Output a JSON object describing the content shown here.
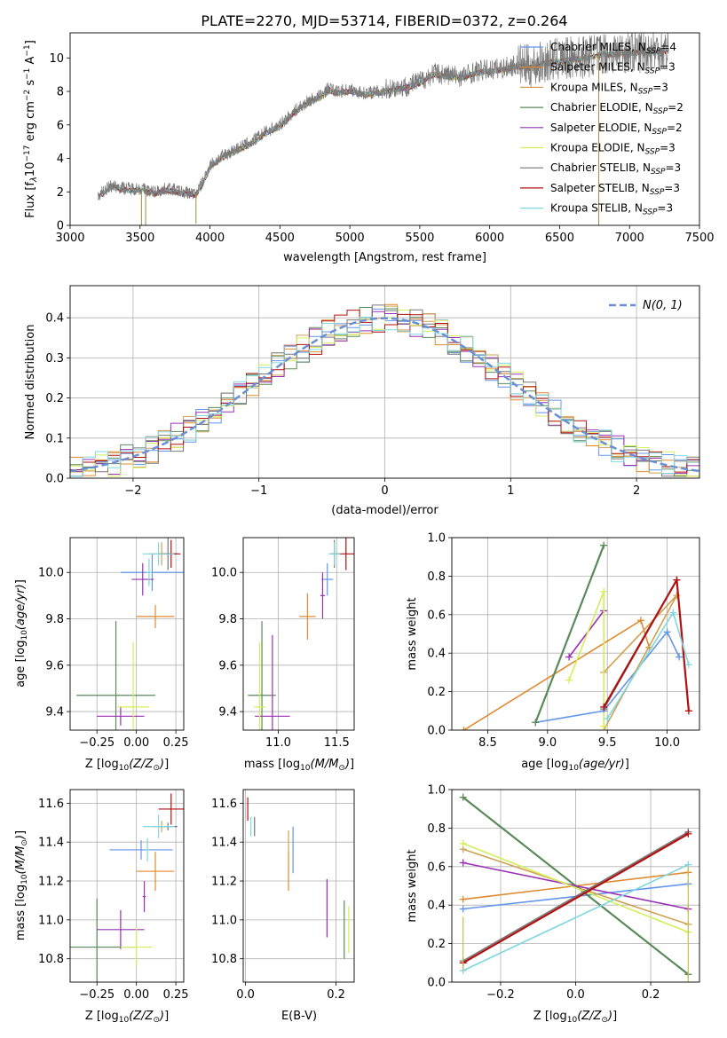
{
  "title": "PLATE=2270, MJD=53714, FIBERID=0372, z=0.264",
  "series_styles": [
    {
      "name": "Chabrier MILES, N_SSP=4",
      "color": "#6495ed"
    },
    {
      "name": "Salpeter MILES, N_SSP=3",
      "color": "#e08a2e"
    },
    {
      "name": "Kroupa MILES, N_SSP=3",
      "color": "#d0a050"
    },
    {
      "name": "Chabrier ELODIE, N_SSP=2",
      "color": "#5a8a5a"
    },
    {
      "name": "Salpeter ELODIE, N_SSP=2",
      "color": "#9b30b5"
    },
    {
      "name": "Kroupa ELODIE, N_SSP=3",
      "color": "#d4ee5a"
    },
    {
      "name": "Chabrier STELIB, N_SSP=3",
      "color": "#777777"
    },
    {
      "name": "Salpeter STELIB, N_SSP=3",
      "color": "#b01010"
    },
    {
      "name": "Kroupa STELIB, N_SSP=3",
      "color": "#7fd7e0"
    }
  ],
  "chart_data": [
    {
      "id": "spectrum",
      "type": "line",
      "xlabel": "wavelength [Angstrom, rest frame]",
      "ylabel": "Flux [f_λ10^-17 erg cm^-2 s^-1 A^-1]",
      "xlim": [
        3000,
        7500
      ],
      "ylim": [
        0,
        11.5
      ],
      "xticks": [
        3000,
        3500,
        4000,
        4500,
        5000,
        5500,
        6000,
        6500,
        7000,
        7500
      ],
      "yticks": [
        0,
        2,
        4,
        6,
        8,
        10
      ],
      "legend": {
        "position": "upper-right",
        "entries": [
          {
            "base": "Chabrier MILES, N",
            "sub": "SSP",
            "tail": "=4"
          },
          {
            "base": "Salpeter MILES, N",
            "sub": "SSP",
            "tail": "=3"
          },
          {
            "base": "Kroupa MILES, N",
            "sub": "SSP",
            "tail": "=3"
          },
          {
            "base": "Chabrier ELODIE, N",
            "sub": "SSP",
            "tail": "=2"
          },
          {
            "base": "Salpeter ELODIE, N",
            "sub": "SSP",
            "tail": "=2"
          },
          {
            "base": "Kroupa ELODIE, N",
            "sub": "SSP",
            "tail": "=3"
          },
          {
            "base": "Chabrier STELIB, N",
            "sub": "SSP",
            "tail": "=3"
          },
          {
            "base": "Salpeter STELIB, N",
            "sub": "SSP",
            "tail": "=3"
          },
          {
            "base": "Kroupa STELIB, N",
            "sub": "SSP",
            "tail": "=3"
          }
        ]
      },
      "continuum": [
        [
          3200,
          1.8
        ],
        [
          3300,
          2.4
        ],
        [
          3400,
          2.2
        ],
        [
          3500,
          2.2
        ],
        [
          3600,
          2.0
        ],
        [
          3700,
          2.2
        ],
        [
          3800,
          2.0
        ],
        [
          3900,
          1.9
        ],
        [
          3950,
          2.6
        ],
        [
          4000,
          3.6
        ],
        [
          4100,
          4.2
        ],
        [
          4200,
          4.6
        ],
        [
          4300,
          5.0
        ],
        [
          4400,
          5.6
        ],
        [
          4500,
          6.0
        ],
        [
          4600,
          6.8
        ],
        [
          4700,
          7.4
        ],
        [
          4800,
          7.8
        ],
        [
          4850,
          8.2
        ],
        [
          4900,
          8.0
        ],
        [
          5000,
          8.1
        ],
        [
          5100,
          7.9
        ],
        [
          5200,
          8.0
        ],
        [
          5300,
          8.2
        ],
        [
          5400,
          8.3
        ],
        [
          5500,
          8.6
        ],
        [
          5600,
          9.1
        ],
        [
          5700,
          9.0
        ],
        [
          5800,
          8.9
        ],
        [
          5900,
          9.2
        ],
        [
          6000,
          9.3
        ],
        [
          6100,
          9.4
        ],
        [
          6200,
          9.6
        ],
        [
          6300,
          9.5
        ],
        [
          6400,
          9.8
        ],
        [
          6500,
          9.9
        ],
        [
          6600,
          10.0
        ],
        [
          6700,
          10.1
        ],
        [
          6800,
          10.3
        ],
        [
          6900,
          10.3
        ],
        [
          7000,
          10.4
        ],
        [
          7100,
          10.4
        ],
        [
          7200,
          10.5
        ],
        [
          7280,
          10.5
        ]
      ],
      "model_ranges": [
        [
          3550,
          7100
        ],
        [
          3550,
          7200
        ],
        [
          3550,
          6650
        ],
        [
          3200,
          7260
        ],
        [
          3550,
          6650
        ],
        [
          3900,
          7100
        ],
        [
          3200,
          7280
        ],
        [
          3200,
          7280
        ],
        [
          3200,
          7280
        ]
      ],
      "data_range": [
        3200,
        7280
      ],
      "glitches": [
        [
          3510,
          0
        ],
        [
          3540,
          0
        ],
        [
          3900,
          0.1
        ],
        [
          6780,
          0
        ]
      ]
    },
    {
      "id": "residuals",
      "type": "line",
      "xlabel": "(data-model)/error",
      "ylabel": "Normed distribution",
      "xlim": [
        -2.5,
        2.5
      ],
      "ylim": [
        0,
        0.48
      ],
      "xticks": [
        -2,
        -1,
        0,
        1,
        2
      ],
      "yticks": [
        0.0,
        0.1,
        0.2,
        0.3,
        0.4
      ],
      "legend": {
        "position": "upper-right",
        "label": "N(0, 1)"
      },
      "normal": {
        "mean": 0,
        "sigma": 1
      }
    },
    {
      "id": "age_vs_Z",
      "type": "scatter",
      "xlabel": "Z [log10(Z/Z⊙)]",
      "ylabel": "age [log10(age/yr)]",
      "xlim": [
        -0.42,
        0.3
      ],
      "ylim": [
        9.32,
        10.15
      ],
      "xticks": [
        -0.25,
        0.0,
        0.25
      ],
      "yticks": [
        9.4,
        9.6,
        9.8,
        10.0
      ],
      "points": [
        {
          "s": 0,
          "x": 0.1,
          "y": 10.0,
          "xerr": 0.2,
          "yerr": 0.08
        },
        {
          "s": 1,
          "x": 0.12,
          "y": 9.81,
          "xerr": 0.12,
          "yerr": 0.05
        },
        {
          "s": 2,
          "x": 0.16,
          "y": 10.08,
          "xerr": 0.08,
          "yerr": 0.05
        },
        {
          "s": 3,
          "x": -0.13,
          "y": 9.47,
          "xerr": 0.25,
          "yerr": 0.32
        },
        {
          "s": 4,
          "x": -0.1,
          "y": 9.38,
          "xerr": 0.15,
          "yerr": 0.04
        },
        {
          "s": 5,
          "x": -0.02,
          "y": 9.42,
          "xerr": 0.1,
          "yerr": 0.28
        },
        {
          "s": 6,
          "x": 0.2,
          "y": 10.08,
          "xerr": 0.06,
          "yerr": 0.07
        },
        {
          "s": 7,
          "x": 0.22,
          "y": 10.08,
          "xerr": 0.06,
          "yerr": 0.06
        },
        {
          "s": 8,
          "x": 0.14,
          "y": 10.08,
          "xerr": 0.1,
          "yerr": 0.05
        }
      ],
      "extra": [
        {
          "s": 4,
          "x": 0.04,
          "y": 9.97,
          "xerr": 0.07,
          "yerr": 0.07
        },
        {
          "s": 8,
          "x": 0.08,
          "y": 10.0,
          "xerr": 0.02,
          "yerr": 0.06
        }
      ]
    },
    {
      "id": "age_vs_mass",
      "type": "scatter",
      "xlabel": "mass [log10(M/M⊙)]",
      "ylabel": "",
      "xlim": [
        10.7,
        11.65
      ],
      "ylim": [
        9.32,
        10.15
      ],
      "xticks": [
        11.0,
        11.5
      ],
      "yticks": [
        9.4,
        9.6,
        9.8,
        10.0
      ],
      "points": [
        {
          "s": 0,
          "x": 11.42,
          "y": 9.97,
          "xerr": 0.05,
          "yerr": 0.07
        },
        {
          "s": 1,
          "x": 11.25,
          "y": 9.81,
          "xerr": 0.07,
          "yerr": 0.1
        },
        {
          "s": 2,
          "x": 11.48,
          "y": 10.08,
          "xerr": 0.03,
          "yerr": 0.05
        },
        {
          "s": 3,
          "x": 10.86,
          "y": 9.47,
          "xerr": 0.12,
          "yerr": 0.32
        },
        {
          "s": 4,
          "x": 10.95,
          "y": 9.38,
          "xerr": 0.15,
          "yerr": 0.35
        },
        {
          "s": 5,
          "x": 10.84,
          "y": 9.42,
          "xerr": 0.05,
          "yerr": 0.28
        },
        {
          "s": 6,
          "x": 11.48,
          "y": 10.08,
          "xerr": 0.02,
          "yerr": 0.06
        },
        {
          "s": 7,
          "x": 11.58,
          "y": 10.08,
          "xerr": 0.08,
          "yerr": 0.07
        },
        {
          "s": 8,
          "x": 11.48,
          "y": 10.08,
          "xerr": 0.05,
          "yerr": 0.05
        }
      ],
      "extra": [
        {
          "s": 4,
          "x": 11.38,
          "y": 9.9,
          "xerr": 0.02,
          "yerr": 0.1
        }
      ]
    },
    {
      "id": "weight_vs_age",
      "type": "line",
      "xlabel": "age [log10(age/yr)]",
      "ylabel": "mass weight",
      "xlim": [
        8.2,
        10.27
      ],
      "ylim": [
        0,
        1.0
      ],
      "xticks": [
        8.5,
        9.0,
        9.5,
        10.0
      ],
      "yticks": [
        0.0,
        0.2,
        0.4,
        0.6,
        0.8,
        1.0
      ],
      "lines": [
        {
          "s": 0,
          "pts": [
            [
              8.9,
              0.04
            ],
            [
              9.47,
              0.1
            ],
            [
              10.0,
              0.51
            ],
            [
              10.1,
              0.38
            ]
          ]
        },
        {
          "s": 1,
          "pts": [
            [
              8.3,
              0.0
            ],
            [
              9.78,
              0.57
            ],
            [
              9.85,
              0.43
            ]
          ]
        },
        {
          "s": 2,
          "pts": [
            [
              9.47,
              0.3
            ],
            [
              10.08,
              0.7
            ],
            [
              9.47,
              0.0
            ]
          ]
        },
        {
          "s": 3,
          "pts": [
            [
              8.9,
              0.04
            ],
            [
              9.47,
              0.96
            ]
          ]
        },
        {
          "s": 4,
          "pts": [
            [
              9.18,
              0.38
            ],
            [
              9.47,
              0.62
            ]
          ]
        },
        {
          "s": 5,
          "pts": [
            [
              9.18,
              0.26
            ],
            [
              9.47,
              0.72
            ],
            [
              9.47,
              0.02
            ]
          ]
        },
        {
          "s": 6,
          "pts": [
            [
              9.47,
              0.11
            ],
            [
              10.08,
              0.78
            ]
          ]
        },
        {
          "s": 7,
          "pts": [
            [
              9.47,
              0.12
            ],
            [
              10.08,
              0.78
            ],
            [
              10.18,
              0.1
            ]
          ]
        },
        {
          "s": 8,
          "pts": [
            [
              9.5,
              0.06
            ],
            [
              10.05,
              0.61
            ],
            [
              10.18,
              0.34
            ]
          ]
        }
      ]
    },
    {
      "id": "mass_vs_Z",
      "type": "scatter",
      "xlabel": "Z [log10(Z/Z⊙)]",
      "ylabel": "mass [log10(M/M⊙)]",
      "xlim": [
        -0.42,
        0.3
      ],
      "ylim": [
        10.68,
        11.67
      ],
      "xticks": [
        -0.25,
        0.0,
        0.25
      ],
      "yticks": [
        10.8,
        11.0,
        11.2,
        11.4,
        11.6
      ],
      "points": [
        {
          "s": 0,
          "x": 0.03,
          "y": 11.36,
          "xerr": 0.2,
          "yerr": 0.05
        },
        {
          "s": 1,
          "x": 0.12,
          "y": 11.25,
          "xerr": 0.12,
          "yerr": 0.1
        },
        {
          "s": 2,
          "x": 0.16,
          "y": 11.48,
          "xerr": 0.06,
          "yerr": 0.03
        },
        {
          "s": 3,
          "x": -0.25,
          "y": 10.86,
          "xerr": 0.25,
          "yerr": 0.25
        },
        {
          "s": 4,
          "x": -0.1,
          "y": 10.95,
          "xerr": 0.15,
          "yerr": 0.1
        },
        {
          "s": 5,
          "x": 0.0,
          "y": 10.86,
          "xerr": 0.1,
          "yerr": 0.1
        },
        {
          "s": 6,
          "x": 0.2,
          "y": 11.48,
          "xerr": 0.06,
          "yerr": 0.02
        },
        {
          "s": 7,
          "x": 0.22,
          "y": 11.57,
          "xerr": 0.08,
          "yerr": 0.08
        },
        {
          "s": 8,
          "x": 0.14,
          "y": 11.48,
          "xerr": 0.1,
          "yerr": 0.06
        }
      ],
      "extra": [
        {
          "s": 4,
          "x": 0.05,
          "y": 11.12,
          "xerr": 0.01,
          "yerr": 0.08
        },
        {
          "s": 8,
          "x": 0.07,
          "y": 11.36,
          "xerr": 0.01,
          "yerr": 0.06
        }
      ]
    },
    {
      "id": "mass_vs_ebv",
      "type": "scatter",
      "xlabel": "E(B-V)",
      "ylabel": "",
      "xlim": [
        -0.005,
        0.24
      ],
      "ylim": [
        10.68,
        11.67
      ],
      "xticks": [
        0.0,
        0.2
      ],
      "yticks": [
        10.8,
        11.0,
        11.2,
        11.4,
        11.6
      ],
      "points": [
        {
          "s": 0,
          "x": 0.105,
          "y": 11.36,
          "xerr": 0.0,
          "yerr": 0.12
        },
        {
          "s": 1,
          "x": 0.095,
          "y": 11.25,
          "xerr": 0.0,
          "yerr": 0.1
        },
        {
          "s": 2,
          "x": 0.095,
          "y": 11.36,
          "xerr": 0.0,
          "yerr": 0.1
        },
        {
          "s": 3,
          "x": 0.218,
          "y": 10.95,
          "xerr": 0.0,
          "yerr": 0.15
        },
        {
          "s": 4,
          "x": 0.18,
          "y": 11.06,
          "xerr": 0.0,
          "yerr": 0.15
        },
        {
          "s": 5,
          "x": 0.228,
          "y": 10.95,
          "xerr": 0.0,
          "yerr": 0.12
        },
        {
          "s": 6,
          "x": 0.02,
          "y": 11.48,
          "xerr": 0.0,
          "yerr": 0.05
        },
        {
          "s": 7,
          "x": 0.005,
          "y": 11.57,
          "xerr": 0.0,
          "yerr": 0.06
        },
        {
          "s": 8,
          "x": 0.012,
          "y": 11.48,
          "xerr": 0.0,
          "yerr": 0.05
        }
      ]
    },
    {
      "id": "weight_vs_Z",
      "type": "line",
      "xlabel": "Z [log10(Z/Z⊙)]",
      "ylabel": "mass weight",
      "xlim": [
        -0.33,
        0.33
      ],
      "ylim": [
        0,
        1.0
      ],
      "xticks": [
        -0.2,
        0.0,
        0.2
      ],
      "yticks": [
        0.0,
        0.2,
        0.4,
        0.6,
        0.8,
        1.0
      ],
      "lines": [
        {
          "s": 0,
          "pts": [
            [
              -0.3,
              0.38
            ],
            [
              0.3,
              0.51
            ]
          ]
        },
        {
          "s": 1,
          "pts": [
            [
              -0.3,
              0.43
            ],
            [
              0.3,
              0.57
            ]
          ]
        },
        {
          "s": 2,
          "pts": [
            [
              -0.3,
              0.69
            ],
            [
              0.3,
              0.3
            ]
          ]
        },
        {
          "s": 3,
          "pts": [
            [
              -0.3,
              0.96
            ],
            [
              0.3,
              0.04
            ]
          ]
        },
        {
          "s": 4,
          "pts": [
            [
              -0.3,
              0.62
            ],
            [
              0.3,
              0.38
            ]
          ]
        },
        {
          "s": 5,
          "pts": [
            [
              -0.3,
              0.72
            ],
            [
              0.3,
              0.26
            ]
          ]
        },
        {
          "s": 6,
          "pts": [
            [
              -0.3,
              0.11
            ],
            [
              0.3,
              0.78
            ]
          ]
        },
        {
          "s": 7,
          "pts": [
            [
              -0.3,
              0.1
            ],
            [
              0.3,
              0.77
            ]
          ]
        },
        {
          "s": 8,
          "pts": [
            [
              -0.3,
              0.06
            ],
            [
              0.3,
              0.61
            ]
          ]
        }
      ],
      "verticals": [
        {
          "x": 0.3,
          "y0": 0.0,
          "y1": 0.6
        },
        {
          "x": -0.3,
          "y0": 0.06,
          "y1": 0.34
        }
      ]
    }
  ]
}
